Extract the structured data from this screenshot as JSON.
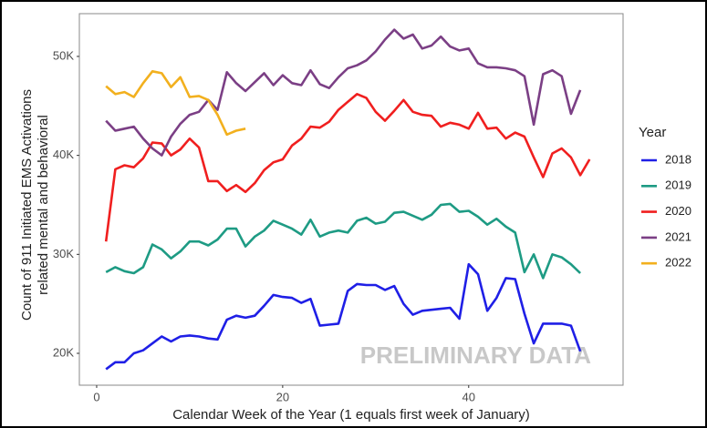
{
  "chart_data": {
    "type": "line",
    "y_label": [
      "Count of 911 Initiated EMS Activations",
      "related mental and behavioral"
    ],
    "x_label": "Calendar Week of the Year (1 equals first week of January)",
    "annotation": "PRELIMINARY DATA",
    "legend_title": "Year",
    "legend_position": "right",
    "grid": false,
    "xlim": [
      -1.86,
      56.6
    ],
    "ylim": [
      16780,
      54320
    ],
    "xticks": [
      0,
      20,
      40
    ],
    "yticks": [
      {
        "value": 20000,
        "label": "20K"
      },
      {
        "value": 30000,
        "label": "30K"
      },
      {
        "value": 40000,
        "label": "40K"
      },
      {
        "value": 50000,
        "label": "50K"
      }
    ],
    "series": [
      {
        "name": "2018",
        "color": "#1f1fe6",
        "x": [
          1,
          2,
          3,
          4,
          5,
          6,
          7,
          8,
          9,
          10,
          11,
          12,
          13,
          14,
          15,
          16,
          17,
          18,
          19,
          20,
          21,
          22,
          23,
          24,
          25,
          26,
          27,
          28,
          29,
          30,
          31,
          32,
          33,
          34,
          35,
          36,
          37,
          38,
          39,
          40,
          41,
          42,
          43,
          44,
          45,
          46,
          47,
          48,
          49,
          50,
          51,
          52
        ],
        "values": [
          18400,
          19100,
          19100,
          20000,
          20300,
          21000,
          21700,
          21200,
          21700,
          21800,
          21700,
          21500,
          21400,
          23400,
          23800,
          23600,
          23800,
          24800,
          25900,
          25700,
          25600,
          25100,
          25500,
          22800,
          22900,
          23000,
          26300,
          27000,
          26900,
          26900,
          26400,
          26800,
          25000,
          23900,
          24300,
          24400,
          24500,
          24600,
          23500,
          29000,
          28000,
          24300,
          25600,
          27600,
          27500,
          24000,
          21000,
          23000,
          23000,
          23000,
          22800,
          20200
        ]
      },
      {
        "name": "2019",
        "color": "#1e9b84",
        "x": [
          1,
          2,
          3,
          4,
          5,
          6,
          7,
          8,
          9,
          10,
          11,
          12,
          13,
          14,
          15,
          16,
          17,
          18,
          19,
          20,
          21,
          22,
          23,
          24,
          25,
          26,
          27,
          28,
          29,
          30,
          31,
          32,
          33,
          34,
          35,
          36,
          37,
          38,
          39,
          40,
          41,
          42,
          43,
          44,
          45,
          46,
          47,
          48,
          49,
          50,
          51,
          52
        ],
        "values": [
          28200,
          28700,
          28300,
          28100,
          28700,
          31000,
          30500,
          29600,
          30300,
          31300,
          31300,
          30900,
          31500,
          32600,
          32600,
          30800,
          31800,
          32400,
          33400,
          33000,
          32600,
          32000,
          33500,
          31800,
          32200,
          32400,
          32200,
          33400,
          33700,
          33100,
          33300,
          34200,
          34300,
          33900,
          33500,
          34000,
          35000,
          35100,
          34300,
          34400,
          33800,
          33000,
          33600,
          32800,
          32200,
          28200,
          30000,
          27600,
          30000,
          29700,
          29000,
          28100
        ]
      },
      {
        "name": "2020",
        "color": "#f01f1f",
        "x": [
          1,
          2,
          3,
          4,
          5,
          6,
          7,
          8,
          9,
          10,
          11,
          12,
          13,
          14,
          15,
          16,
          17,
          18,
          19,
          20,
          21,
          22,
          23,
          24,
          25,
          26,
          27,
          28,
          29,
          30,
          31,
          32,
          33,
          34,
          35,
          36,
          37,
          38,
          39,
          40,
          41,
          42,
          43,
          44,
          45,
          46,
          47,
          48,
          49,
          50,
          51,
          52,
          53
        ],
        "values": [
          31300,
          38600,
          39000,
          38800,
          39700,
          41300,
          41200,
          40000,
          40600,
          41700,
          40800,
          37400,
          37400,
          36400,
          37000,
          36300,
          37200,
          38500,
          39300,
          39600,
          41000,
          41700,
          42900,
          42800,
          43400,
          44600,
          45400,
          46200,
          45800,
          44400,
          43500,
          44500,
          45600,
          44400,
          44100,
          44000,
          42900,
          43300,
          43100,
          42700,
          44300,
          42700,
          42800,
          41700,
          42300,
          41900,
          39800,
          37800,
          40200,
          40700,
          39800,
          38000,
          39600
        ]
      },
      {
        "name": "2021",
        "color": "#7b3f85",
        "x": [
          1,
          2,
          3,
          4,
          5,
          6,
          7,
          8,
          9,
          10,
          11,
          12,
          13,
          14,
          15,
          16,
          17,
          18,
          19,
          20,
          21,
          22,
          23,
          24,
          25,
          26,
          27,
          28,
          29,
          30,
          31,
          32,
          33,
          34,
          35,
          36,
          37,
          38,
          39,
          40,
          41,
          42,
          43,
          44,
          45,
          46,
          47,
          48,
          49,
          50,
          51,
          52
        ],
        "values": [
          43500,
          42500,
          42700,
          42900,
          41700,
          40700,
          40000,
          41900,
          43200,
          44100,
          44400,
          45600,
          44600,
          48400,
          47300,
          46500,
          47400,
          48300,
          47100,
          48100,
          47300,
          47100,
          48600,
          47200,
          46800,
          47900,
          48800,
          49100,
          49600,
          50500,
          51700,
          52700,
          51800,
          52200,
          50800,
          51100,
          52000,
          51000,
          50600,
          50800,
          49300,
          48900,
          48900,
          48800,
          48600,
          48000,
          43100,
          48200,
          48600,
          48000,
          44200,
          46600
        ]
      },
      {
        "name": "2022",
        "color": "#f2b01e",
        "x": [
          1,
          2,
          3,
          4,
          5,
          6,
          7,
          8,
          9,
          10,
          11,
          12,
          13,
          14,
          15,
          16
        ],
        "values": [
          47000,
          46200,
          46400,
          45900,
          47300,
          48500,
          48300,
          46900,
          47900,
          45900,
          46000,
          45600,
          44100,
          42100,
          42500,
          42700
        ]
      }
    ]
  }
}
